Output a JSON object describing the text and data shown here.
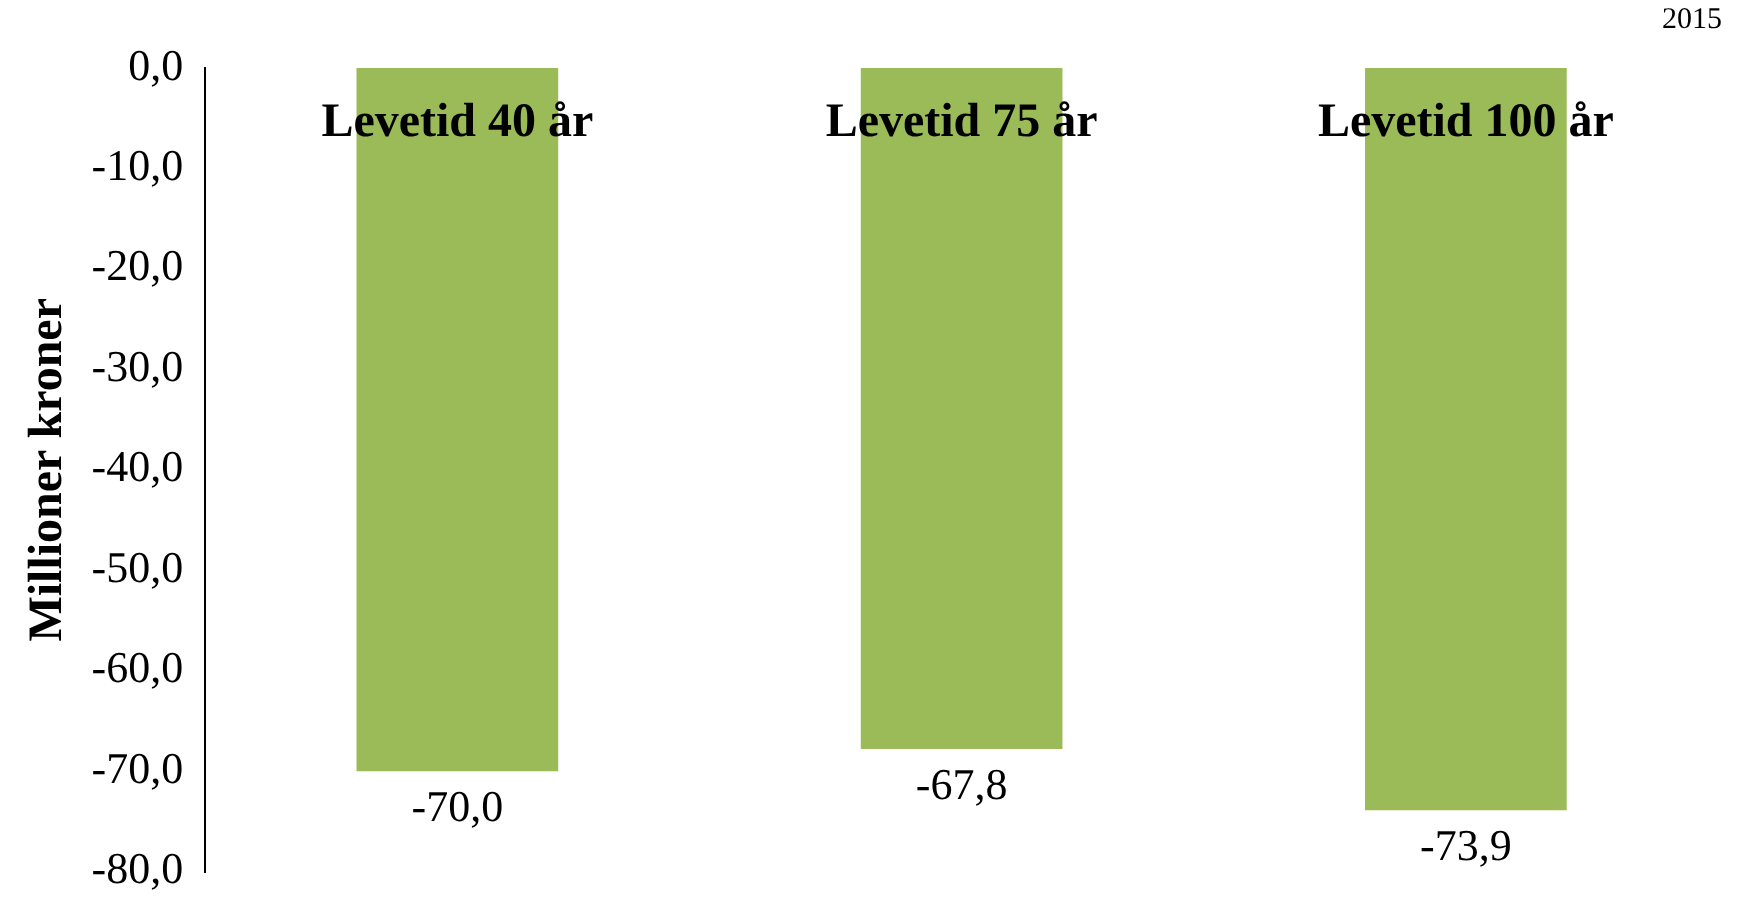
{
  "chart_data": {
    "type": "bar",
    "ylabel": "Millioner kroner",
    "categories": [
      "Levetid 40 år",
      "Levetid 75 år",
      "Levetid 100 år"
    ],
    "values": [
      -70.0,
      -67.8,
      -73.9
    ],
    "value_labels": [
      "-70,0",
      "-67,8",
      "-73,9"
    ],
    "color": "#9bbb59",
    "ylim": [
      -80,
      0
    ],
    "yticks": [
      {
        "value": -80,
        "label": "-80,0"
      },
      {
        "value": -70,
        "label": "-70,0"
      },
      {
        "value": -60,
        "label": "-60,0"
      },
      {
        "value": -50,
        "label": "-50,0"
      },
      {
        "value": -40,
        "label": "-40,0"
      },
      {
        "value": -30,
        "label": "-30,0"
      },
      {
        "value": -20,
        "label": "-20,0"
      },
      {
        "value": -10,
        "label": "-10,0"
      },
      {
        "value": 0,
        "label": "0,0"
      }
    ],
    "grid": false,
    "legend": false,
    "annotations": [
      "2015"
    ]
  }
}
